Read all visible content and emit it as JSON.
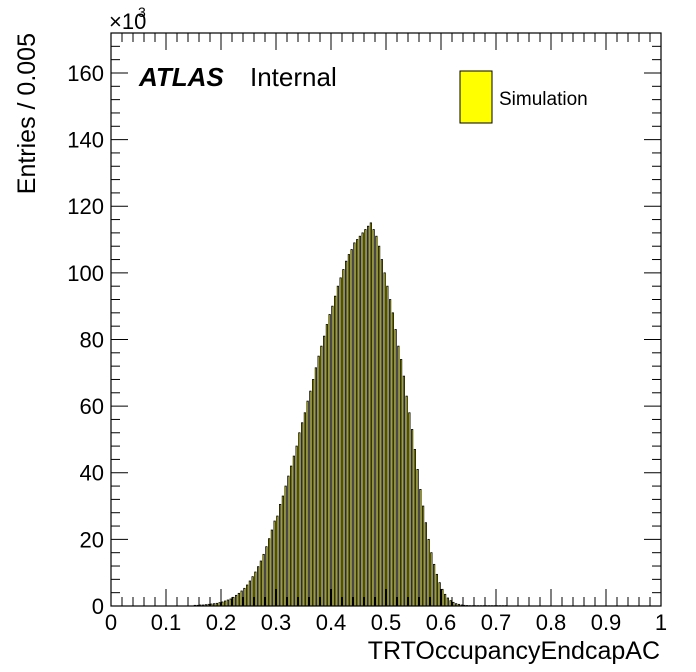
{
  "colors": {
    "bar_fill": "#ffff00",
    "bar_stroke": "#000000",
    "axis": "#000000",
    "background": "#ffffff"
  },
  "chart_data": {
    "type": "bar",
    "xlabel": "TRTOccupancyEndcapAC",
    "ylabel": "Entries / 0.005",
    "y_multiplier": "×10",
    "y_multiplier_exp": "3",
    "xlim": [
      0,
      1
    ],
    "ylim": [
      0,
      172
    ],
    "x_ticks": [
      0,
      0.1,
      0.2,
      0.3,
      0.4,
      0.5,
      0.6,
      0.7,
      0.8,
      0.9,
      1
    ],
    "x_tick_labels": [
      "0",
      "0.1",
      "0.2",
      "0.3",
      "0.4",
      "0.5",
      "0.6",
      "0.7",
      "0.8",
      "0.9",
      "1"
    ],
    "y_ticks": [
      0,
      20,
      40,
      60,
      80,
      100,
      120,
      140,
      160
    ],
    "y_tick_labels": [
      "0",
      "20",
      "40",
      "60",
      "80",
      "100",
      "120",
      "140",
      "160"
    ],
    "bin_width": 0.005,
    "bar_width": 0.0025,
    "grid": false,
    "legend_position": "top-right",
    "series": [
      {
        "name": "Simulation",
        "x": [
          0.1525,
          0.1575,
          0.1625,
          0.1675,
          0.1725,
          0.1775,
          0.1825,
          0.1875,
          0.1925,
          0.1975,
          0.2025,
          0.2075,
          0.2125,
          0.2175,
          0.2225,
          0.2275,
          0.2325,
          0.2375,
          0.2425,
          0.2475,
          0.2525,
          0.2575,
          0.2625,
          0.2675,
          0.2725,
          0.2775,
          0.2825,
          0.2875,
          0.2925,
          0.2975,
          0.3025,
          0.3075,
          0.3125,
          0.3175,
          0.3225,
          0.3275,
          0.3325,
          0.3375,
          0.3425,
          0.3475,
          0.3525,
          0.3575,
          0.3625,
          0.3675,
          0.3725,
          0.3775,
          0.3825,
          0.3875,
          0.3925,
          0.3975,
          0.4025,
          0.4075,
          0.4125,
          0.4175,
          0.4225,
          0.4275,
          0.4325,
          0.4375,
          0.4425,
          0.4475,
          0.4525,
          0.4575,
          0.4625,
          0.4675,
          0.4725,
          0.4775,
          0.4825,
          0.4875,
          0.4925,
          0.4975,
          0.5025,
          0.5075,
          0.5125,
          0.5175,
          0.5225,
          0.5275,
          0.5325,
          0.5375,
          0.5425,
          0.5475,
          0.5525,
          0.5575,
          0.5625,
          0.5675,
          0.5725,
          0.5775,
          0.5825,
          0.5875,
          0.5925,
          0.5975,
          0.6025,
          0.6075,
          0.6125,
          0.6175,
          0.6225,
          0.6275,
          0.6325,
          0.6375,
          0.6425,
          0.6475,
          0.6525,
          0.6575,
          0.6625,
          0.6675,
          0.6725,
          0.6775,
          0.6825,
          0.6875,
          0.6925,
          0.6975,
          0.7025,
          0.7075,
          0.7125,
          0.7175
        ],
        "values": [
          0.2,
          0.2,
          0.3,
          0.3,
          0.4,
          0.5,
          0.6,
          0.7,
          0.8,
          1.0,
          1.2,
          1.5,
          1.8,
          2.1,
          2.6,
          3.2,
          3.8,
          4.5,
          5.3,
          6.3,
          7.5,
          8.8,
          10.2,
          11.8,
          13.5,
          15.5,
          17.8,
          20.2,
          22.8,
          25.5,
          27.0,
          30.5,
          33.0,
          36.0,
          39.0,
          42.0,
          45.0,
          48.0,
          52.0,
          55.0,
          58.0,
          61.5,
          64.5,
          68.0,
          71.5,
          75.0,
          78.0,
          81.0,
          84.5,
          87.5,
          90.0,
          93.0,
          96.0,
          98.5,
          101.0,
          103.5,
          105.5,
          107.0,
          109.0,
          110.0,
          111.0,
          112.0,
          113.0,
          114.0,
          115.0,
          113.0,
          111.0,
          108.0,
          104.0,
          100.0,
          96.0,
          92.0,
          88.0,
          83.0,
          78.0,
          74.0,
          69.0,
          63.0,
          58.0,
          53.0,
          47.0,
          41.0,
          35.0,
          30.0,
          25.0,
          20.0,
          16.0,
          12.5,
          9.5,
          7.0,
          5.0,
          3.5,
          2.4,
          1.6,
          1.1,
          0.7,
          0.5,
          0.3,
          0.2,
          0.15,
          0.1,
          0.1,
          0.1,
          0.1,
          0.1,
          0.1,
          0.1,
          0.1,
          0.1,
          0.1,
          0.1,
          0.1,
          0.1,
          0.1
        ]
      }
    ]
  },
  "labels": {
    "atlas": "ATLAS",
    "internal": "Internal"
  }
}
